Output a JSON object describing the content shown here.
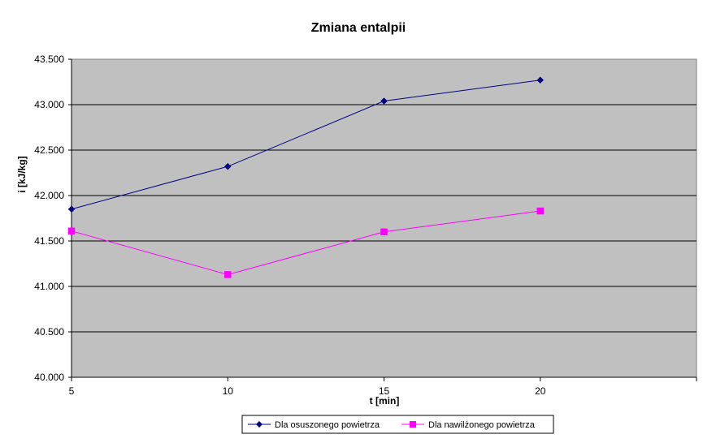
{
  "chart_data": {
    "type": "line",
    "title": "Zmiana entalpii",
    "xlabel": "t [min]",
    "ylabel": "i [kJ/kg]",
    "x": [
      5,
      10,
      15,
      20
    ],
    "x_ticks": [
      "5",
      "10",
      "15",
      "20"
    ],
    "xlim": [
      5,
      25
    ],
    "ylim": [
      40000,
      43500
    ],
    "y_ticks": [
      "40.000",
      "40.500",
      "41.000",
      "41.500",
      "42.000",
      "42.500",
      "43.000",
      "43.500"
    ],
    "grid": "horizontal",
    "plot_background": "#c0c0c0",
    "legend_position": "bottom",
    "series": [
      {
        "name": "Dla osuszonego powietrza",
        "values": [
          41850,
          42320,
          43040,
          43270
        ],
        "color": "#000080",
        "marker": "diamond"
      },
      {
        "name": "Dla nawilżonego powietrza",
        "values": [
          41610,
          41130,
          41600,
          41830
        ],
        "color": "#ff00ff",
        "marker": "square"
      }
    ]
  }
}
